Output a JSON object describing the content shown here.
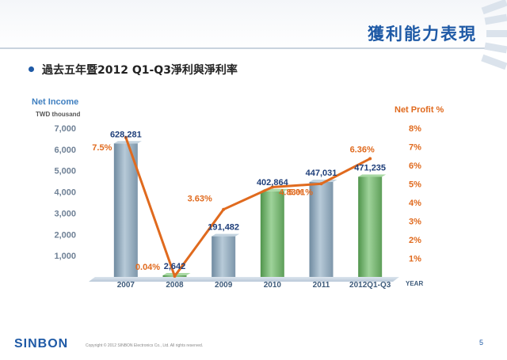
{
  "header": {
    "title": "獲利能力表現",
    "bullet": "過去五年暨2012 Q1-Q3淨利與淨利率"
  },
  "footer": {
    "logo": "SINBON",
    "copyright": "Copyright © 2012 SINBON Electronics Co., Ltd. All rights reserved.",
    "page_number": "5"
  },
  "colors": {
    "brand": "#1f5aa6",
    "bar_gray": "#8aa3b8",
    "bar_green": "#6fae6a",
    "line": "#e06a1e",
    "value_label": "#1f3f7a"
  },
  "chart_data": {
    "type": "bar",
    "left_axis_title": "Net Income",
    "left_axis_unit": "TWD thousand",
    "right_axis_title": "Net Profit %",
    "x_axis_label": "YEAR",
    "categories": [
      "2007",
      "2008",
      "2009",
      "2010",
      "2011",
      "2012Q1-Q3"
    ],
    "left_ticks": [
      "1,000",
      "2,000",
      "3,000",
      "4,000",
      "5,000",
      "6,000",
      "7,000"
    ],
    "right_ticks": [
      "1%",
      "2%",
      "3%",
      "4%",
      "5%",
      "6%",
      "7%",
      "8%"
    ],
    "ylim": [
      0,
      700000
    ],
    "y2lim": [
      0,
      8
    ],
    "series": [
      {
        "name": "Net Income",
        "kind": "bar",
        "values": [
          628281,
          2642,
          191482,
          402864,
          447031,
          471235
        ],
        "labels": [
          "628,281",
          "2,642",
          "191,482",
          "402,864",
          "447,031",
          "471,235"
        ],
        "bar_colors": [
          "gray",
          "green",
          "gray",
          "green",
          "gray",
          "green"
        ]
      },
      {
        "name": "Net Profit %",
        "kind": "line",
        "values": [
          7.5,
          0.04,
          3.63,
          4.83,
          5.01,
          6.36
        ],
        "labels": [
          "7.5%",
          "0.04%",
          "3.63%",
          "4.83%",
          "5.01%",
          "6.36%"
        ]
      }
    ]
  }
}
